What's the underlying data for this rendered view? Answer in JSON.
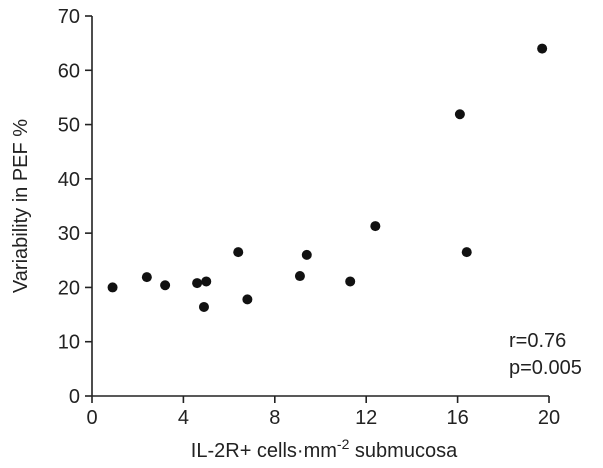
{
  "chart_data": {
    "type": "scatter",
    "xlabel_main": "IL-2R+ cells·mm",
    "xlabel_sup": "-2",
    "xlabel_tail": " submucosa",
    "ylabel": "Variability in PEF  %",
    "xlim": [
      0,
      20
    ],
    "ylim": [
      0,
      70
    ],
    "xticks": [
      "0",
      "4",
      "8",
      "12",
      "16",
      "20"
    ],
    "yticks": [
      "0",
      "10",
      "20",
      "30",
      "40",
      "50",
      "60",
      "70"
    ],
    "grid": false,
    "marker_color": "#111111",
    "annotation": {
      "r": "r=0.76",
      "p": "p=0.005"
    },
    "points": [
      {
        "x": 0.9,
        "y": 20.0
      },
      {
        "x": 2.4,
        "y": 21.9
      },
      {
        "x": 3.2,
        "y": 20.4
      },
      {
        "x": 4.6,
        "y": 20.8
      },
      {
        "x": 4.9,
        "y": 16.4
      },
      {
        "x": 5.0,
        "y": 21.1
      },
      {
        "x": 6.4,
        "y": 26.5
      },
      {
        "x": 6.8,
        "y": 17.8
      },
      {
        "x": 9.1,
        "y": 22.1
      },
      {
        "x": 9.4,
        "y": 26.0
      },
      {
        "x": 11.3,
        "y": 21.1
      },
      {
        "x": 12.4,
        "y": 31.3
      },
      {
        "x": 16.1,
        "y": 51.9
      },
      {
        "x": 16.4,
        "y": 26.5
      },
      {
        "x": 19.7,
        "y": 64.0
      }
    ]
  }
}
